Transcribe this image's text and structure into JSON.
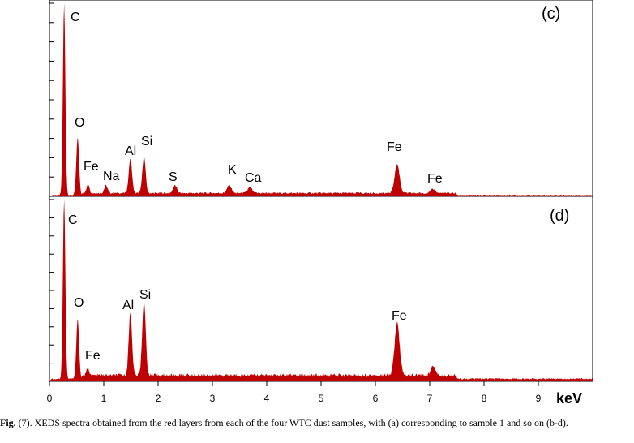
{
  "caption": {
    "fig_label": "Fig.",
    "text": " (7). XEDS spectra obtained from the red layers from each of the four WTC dust samples, with (a) corresponding to sample 1 and so on (b-d)."
  },
  "colors": {
    "spectrum": "#c00000",
    "axis": "#000000"
  },
  "chart_data": [
    {
      "type": "area",
      "panel": "(c)",
      "xlabel": "keV",
      "xlim": [
        0,
        10
      ],
      "baseline": 0.01,
      "peaks": [
        {
          "label": "C",
          "x": 0.27,
          "height": 1.0,
          "width": 0.022
        },
        {
          "label": "O",
          "x": 0.52,
          "height": 0.3,
          "width": 0.025
        },
        {
          "label": "Fe",
          "x": 0.71,
          "height": 0.05,
          "width": 0.025
        },
        {
          "label": "Na",
          "x": 1.04,
          "height": 0.04,
          "width": 0.03
        },
        {
          "label": "Al",
          "x": 1.49,
          "height": 0.18,
          "width": 0.03
        },
        {
          "label": "Si",
          "x": 1.74,
          "height": 0.19,
          "width": 0.03
        },
        {
          "label": "S",
          "x": 2.31,
          "height": 0.04,
          "width": 0.035
        },
        {
          "label": "K",
          "x": 3.31,
          "height": 0.04,
          "width": 0.04
        },
        {
          "label": "Ca",
          "x": 3.69,
          "height": 0.03,
          "width": 0.04
        },
        {
          "label": "Fe",
          "x": 6.4,
          "height": 0.15,
          "width": 0.045
        },
        {
          "label": "Fe",
          "x": 7.06,
          "height": 0.02,
          "width": 0.045
        }
      ],
      "peak_labels": [
        "C",
        "O",
        "Fe",
        "Na",
        "Al",
        "Si",
        "S",
        "K",
        "Ca",
        "Fe",
        "Fe"
      ]
    },
    {
      "type": "area",
      "panel": "(d)",
      "xlabel": "keV",
      "xlim": [
        0,
        10
      ],
      "baseline": 0.02,
      "peaks": [
        {
          "label": "C",
          "x": 0.27,
          "height": 1.0,
          "width": 0.022
        },
        {
          "label": "O",
          "x": 0.52,
          "height": 0.33,
          "width": 0.025
        },
        {
          "label": "Fe",
          "x": 0.71,
          "height": 0.04,
          "width": 0.025
        },
        {
          "label": "Al",
          "x": 1.49,
          "height": 0.35,
          "width": 0.03
        },
        {
          "label": "Si",
          "x": 1.74,
          "height": 0.41,
          "width": 0.032
        },
        {
          "label": "Fe",
          "x": 6.4,
          "height": 0.29,
          "width": 0.045
        },
        {
          "label": "Fe",
          "x": 7.06,
          "height": 0.05,
          "width": 0.045
        }
      ],
      "peak_labels": [
        "C",
        "O",
        "Al",
        "Si",
        "Fe",
        "Fe"
      ]
    }
  ],
  "x_ticks": [
    "0",
    "1",
    "2",
    "3",
    "4",
    "5",
    "6",
    "7",
    "8",
    "9"
  ]
}
